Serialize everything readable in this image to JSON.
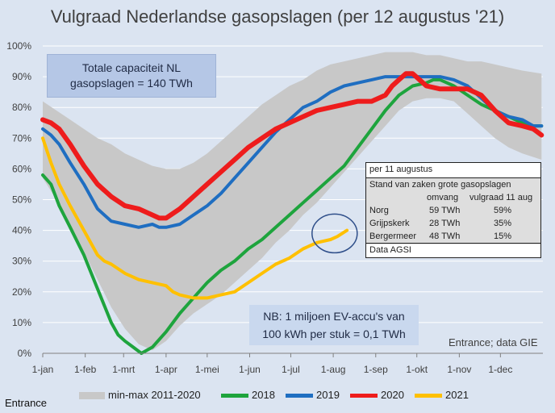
{
  "chart_data": {
    "type": "line",
    "title": "Vulgraad Nederlandse gasopslagen (per 12 augustus '21)",
    "ylim": [
      0,
      100
    ],
    "y_ticks": [
      "0%",
      "10%",
      "20%",
      "30%",
      "40%",
      "50%",
      "60%",
      "70%",
      "80%",
      "90%",
      "100%"
    ],
    "x_ticks": [
      "1-jan",
      "1-feb",
      "1-mrt",
      "1-apr",
      "1-mei",
      "1-jun",
      "1-jul",
      "1-aug",
      "1-sep",
      "1-okt",
      "1-nov",
      "1-dec"
    ],
    "grid": true,
    "legend_position": "bottom",
    "band": {
      "name": "min-max 2011-2020",
      "color": "#c8c8c8",
      "x": [
        0,
        10,
        20,
        30,
        40,
        50,
        60,
        70,
        80,
        90,
        100,
        110,
        120,
        130,
        140,
        150,
        160,
        170,
        180,
        190,
        200,
        210,
        220,
        230,
        240,
        250,
        260,
        270,
        280,
        290,
        300,
        310,
        320,
        330,
        340,
        350,
        364
      ],
      "upper": [
        82,
        79,
        76,
        73,
        70,
        68,
        65,
        63,
        61,
        60,
        60,
        62,
        65,
        69,
        73,
        77,
        81,
        84,
        87,
        89,
        92,
        94,
        95,
        96,
        97,
        98,
        98,
        98,
        97,
        97,
        96,
        95,
        95,
        94,
        93,
        92,
        91
      ],
      "lower": [
        57,
        50,
        42,
        33,
        24,
        15,
        8,
        3,
        1,
        4,
        9,
        13,
        16,
        19,
        23,
        27,
        31,
        36,
        40,
        45,
        49,
        54,
        59,
        64,
        69,
        74,
        79,
        82,
        83,
        83,
        82,
        78,
        74,
        70,
        67,
        65,
        63
      ]
    },
    "series": [
      {
        "name": "2018",
        "color": "#1ea43d",
        "x": [
          0,
          6,
          12,
          20,
          30,
          40,
          50,
          55,
          60,
          66,
          72,
          80,
          90,
          100,
          110,
          120,
          130,
          140,
          150,
          160,
          170,
          180,
          190,
          200,
          210,
          220,
          230,
          240,
          250,
          260,
          270,
          280,
          285,
          290,
          295,
          300,
          310,
          320,
          330,
          340,
          350,
          358,
          364
        ],
        "values": [
          58,
          55,
          48,
          41,
          32,
          21,
          10,
          6,
          4,
          2,
          0,
          2,
          7,
          13,
          18,
          23,
          27,
          30,
          34,
          37,
          41,
          45,
          49,
          53,
          57,
          61,
          67,
          73,
          79,
          84,
          87,
          88,
          89,
          89,
          88,
          87,
          84,
          81,
          79,
          77,
          75,
          74,
          74
        ]
      },
      {
        "name": "2019",
        "color": "#1f6ec1",
        "x": [
          0,
          6,
          12,
          20,
          30,
          40,
          50,
          60,
          70,
          80,
          85,
          90,
          100,
          110,
          120,
          130,
          140,
          150,
          160,
          170,
          180,
          190,
          200,
          210,
          220,
          230,
          240,
          250,
          260,
          270,
          275,
          280,
          290,
          300,
          310,
          320,
          330,
          340,
          350,
          358,
          364
        ],
        "values": [
          73,
          71,
          68,
          62,
          55,
          47,
          43,
          42,
          41,
          42,
          41,
          41,
          42,
          45,
          48,
          52,
          57,
          62,
          67,
          72,
          76,
          80,
          82,
          85,
          87,
          88,
          89,
          90,
          90,
          90,
          90,
          90,
          90,
          89,
          87,
          83,
          79,
          77,
          76,
          74,
          74
        ]
      },
      {
        "name": "2020",
        "color": "#ee1c1c",
        "x": [
          0,
          6,
          12,
          20,
          30,
          40,
          50,
          60,
          70,
          80,
          85,
          90,
          100,
          110,
          120,
          130,
          140,
          150,
          160,
          170,
          180,
          190,
          200,
          210,
          220,
          230,
          240,
          250,
          255,
          260,
          265,
          268,
          270,
          275,
          280,
          290,
          300,
          310,
          320,
          330,
          340,
          350,
          358,
          364
        ],
        "values": [
          76,
          75,
          73,
          68,
          61,
          55,
          51,
          48,
          47,
          45,
          44,
          44,
          47,
          51,
          55,
          59,
          63,
          67,
          70,
          73,
          75,
          77,
          79,
          80,
          81,
          82,
          82,
          84,
          87,
          89,
          91,
          91,
          91,
          89,
          87,
          86,
          86,
          86,
          84,
          79,
          75,
          74,
          73,
          71
        ]
      },
      {
        "name": "2021",
        "color": "#ffc000",
        "x": [
          0,
          6,
          12,
          20,
          30,
          40,
          45,
          50,
          60,
          70,
          80,
          90,
          95,
          100,
          110,
          120,
          130,
          140,
          150,
          160,
          170,
          180,
          190,
          200,
          210,
          215,
          222
        ],
        "values": [
          70,
          62,
          55,
          48,
          40,
          32,
          30,
          29,
          26,
          24,
          23,
          22,
          20,
          19,
          18,
          18,
          19,
          20,
          23,
          26,
          29,
          31,
          34,
          36,
          37,
          38,
          40
        ]
      }
    ],
    "annotation_circle_day": 213,
    "annotation_circle_value": 39
  },
  "capacity_box": {
    "line1": "Totale capaciteit NL",
    "line2": "gasopslagen = 140 TWh"
  },
  "nb_box": {
    "line1": "NB: 1 miljoen EV-accu's van",
    "line2": "100 kWh per stuk = 0,1 TWh"
  },
  "source_note": "Entrance; data GIE",
  "footer_source": "Entrance",
  "storage_table": {
    "date": "per 11 augustus",
    "title": "Stand van zaken grote gasopslagen",
    "col_amount": "omvang",
    "col_fill": "vulgraad 11 aug",
    "rows": [
      {
        "name": "Norg",
        "amount": "59 TWh",
        "fill": "59%"
      },
      {
        "name": "Grijpskerk",
        "amount": "28 TWh",
        "fill": "35%"
      },
      {
        "name": "Bergermeer",
        "amount": "48 TWh",
        "fill": "15%"
      }
    ],
    "footer": "Data AGSI"
  }
}
